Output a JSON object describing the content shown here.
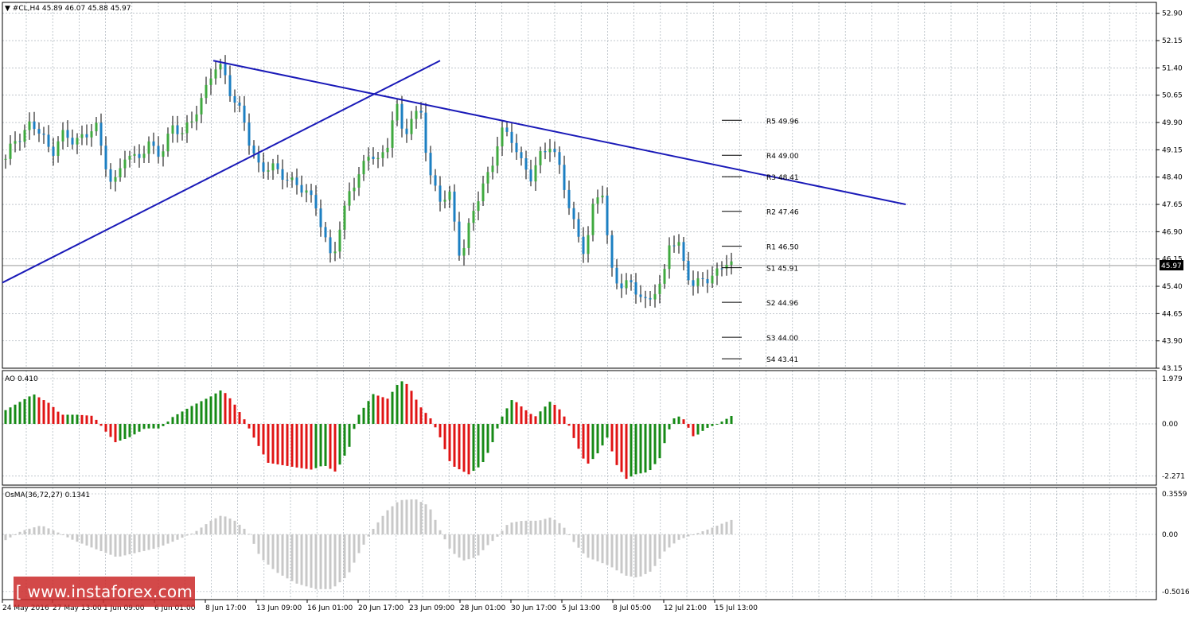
{
  "panels": {
    "main_label": "▼ #CL,H4  45.89 46.07 45.88 45.97",
    "ao_label": "AO 0.410",
    "osma_label": "OsMA(36,72,27) 0.1341",
    "current_price": "45.97"
  },
  "watermark": "[ www.instaforex.com ]",
  "colors": {
    "up_candle": "#3fa93f",
    "down_candle": "#1c7fc2",
    "trendline": "#1a1ab8",
    "ao_up": "#168a16",
    "ao_down": "#e01414",
    "osma": "#c8c8c8",
    "grid": "#9aa4ad"
  },
  "chart_data": [
    {
      "type": "candlestick",
      "symbol": "#CL,H4",
      "y_ticks": [
        "52.90",
        "52.15",
        "51.40",
        "50.65",
        "49.90",
        "49.15",
        "48.40",
        "47.65",
        "46.90",
        "46.15",
        "45.40",
        "44.65",
        "43.90",
        "43.15"
      ],
      "ylim": [
        43.15,
        53.2
      ],
      "x_ticks": [
        "24 May 2016",
        "27 May 13:00",
        "1 Jun 09:00",
        "6 Jun 01:00",
        "8 Jun 17:00",
        "13 Jun 09:00",
        "16 Jun 01:00",
        "20 Jun 17:00",
        "23 Jun 09:00",
        "28 Jun 01:00",
        "30 Jun 17:00",
        "5 Jul 13:00",
        "8 Jul 05:00",
        "12 Jul 21:00",
        "15 Jul 13:00"
      ],
      "close_path": [
        [
          0,
          48.9
        ],
        [
          10,
          49.4
        ],
        [
          20,
          49.5
        ],
        [
          32,
          49.9
        ],
        [
          45,
          49.6
        ],
        [
          58,
          49.0
        ],
        [
          70,
          49.6
        ],
        [
          85,
          49.4
        ],
        [
          100,
          49.5
        ],
        [
          113,
          49.9
        ],
        [
          122,
          49.0
        ],
        [
          135,
          48.1
        ],
        [
          150,
          49.0
        ],
        [
          165,
          48.9
        ],
        [
          180,
          49.3
        ],
        [
          195,
          49.0
        ],
        [
          210,
          49.8
        ],
        [
          222,
          49.6
        ],
        [
          235,
          50.0
        ],
        [
          248,
          50.6
        ],
        [
          258,
          51.2
        ],
        [
          266,
          51.5
        ],
        [
          274,
          51.3
        ],
        [
          284,
          50.6
        ],
        [
          298,
          50.1
        ],
        [
          308,
          49.2
        ],
        [
          320,
          48.6
        ],
        [
          335,
          48.7
        ],
        [
          350,
          48.4
        ],
        [
          365,
          48.2
        ],
        [
          378,
          48.0
        ],
        [
          390,
          47.6
        ],
        [
          400,
          46.8
        ],
        [
          410,
          46.1
        ],
        [
          420,
          47.0
        ],
        [
          432,
          48.0
        ],
        [
          445,
          48.5
        ],
        [
          458,
          49.1
        ],
        [
          470,
          48.8
        ],
        [
          480,
          49.3
        ],
        [
          490,
          50.5
        ],
        [
          500,
          49.5
        ],
        [
          510,
          50.0
        ],
        [
          522,
          50.2
        ],
        [
          532,
          48.5
        ],
        [
          545,
          47.8
        ],
        [
          558,
          47.9
        ],
        [
          572,
          46.1
        ],
        [
          585,
          47.3
        ],
        [
          598,
          48.1
        ],
        [
          610,
          48.6
        ],
        [
          622,
          49.7
        ],
        [
          635,
          49.5
        ],
        [
          648,
          48.8
        ],
        [
          660,
          48.4
        ],
        [
          672,
          49.0
        ],
        [
          685,
          49.3
        ],
        [
          697,
          48.6
        ],
        [
          708,
          47.6
        ],
        [
          717,
          46.9
        ],
        [
          728,
          46.3
        ],
        [
          740,
          47.8
        ],
        [
          750,
          48.0
        ],
        [
          760,
          45.9
        ],
        [
          772,
          45.4
        ],
        [
          785,
          45.5
        ],
        [
          795,
          45.2
        ],
        [
          806,
          44.9
        ],
        [
          816,
          45.3
        ],
        [
          826,
          45.5
        ],
        [
          834,
          46.6
        ],
        [
          845,
          46.6
        ],
        [
          855,
          45.8
        ],
        [
          865,
          45.4
        ],
        [
          875,
          45.6
        ],
        [
          885,
          45.6
        ],
        [
          895,
          45.8
        ],
        [
          905,
          46.1
        ],
        [
          914,
          45.97
        ]
      ],
      "support_resistance": [
        {
          "label": "R5 49.96",
          "value": 49.96
        },
        {
          "label": "R4 49.00",
          "value": 49.0
        },
        {
          "label": "R3 48.41",
          "value": 48.41
        },
        {
          "label": "R2 47.46",
          "value": 47.46
        },
        {
          "label": "R1 46.50",
          "value": 46.5
        },
        {
          "label": "S1 45.91",
          "value": 45.91
        },
        {
          "label": "S2 44.96",
          "value": 44.96
        },
        {
          "label": "S3 44.00",
          "value": 44.0
        },
        {
          "label": "S4 43.41",
          "value": 43.41
        }
      ],
      "trendlines": [
        {
          "name": "rising",
          "from": [
            0,
            45.5
          ],
          "to": [
            550,
            51.6
          ]
        },
        {
          "name": "falling",
          "from": [
            265,
            51.6
          ],
          "to": [
            1135,
            47.65
          ]
        }
      ],
      "current_value": 45.97
    },
    {
      "type": "histogram",
      "name": "AO",
      "value": 0.41,
      "y_ticks": [
        "1.979",
        "0.00",
        "-2.271"
      ],
      "ylim": [
        -2.271,
        1.979
      ],
      "bar_path": [
        [
          0,
          0.6
        ],
        [
          35,
          1.3
        ],
        [
          55,
          0.9
        ],
        [
          70,
          0.4
        ],
        [
          90,
          0.4
        ],
        [
          110,
          0.35
        ],
        [
          125,
          -0.3
        ],
        [
          138,
          -0.8
        ],
        [
          155,
          -0.6
        ],
        [
          175,
          -0.2
        ],
        [
          195,
          -0.2
        ],
        [
          210,
          0.3
        ],
        [
          235,
          0.8
        ],
        [
          258,
          1.2
        ],
        [
          272,
          1.5
        ],
        [
          285,
          1.0
        ],
        [
          300,
          0.2
        ],
        [
          312,
          -0.6
        ],
        [
          330,
          -1.7
        ],
        [
          365,
          -1.9
        ],
        [
          385,
          -2.0
        ],
        [
          400,
          -1.8
        ],
        [
          415,
          -2.1
        ],
        [
          432,
          -1.0
        ],
        [
          442,
          0.3
        ],
        [
          462,
          1.3
        ],
        [
          480,
          1.1
        ],
        [
          496,
          1.9
        ],
        [
          506,
          1.7
        ],
        [
          520,
          0.8
        ],
        [
          535,
          0.2
        ],
        [
          545,
          -0.5
        ],
        [
          560,
          -1.8
        ],
        [
          582,
          -2.2
        ],
        [
          598,
          -1.8
        ],
        [
          610,
          -1.0
        ],
        [
          622,
          0.2
        ],
        [
          637,
          1.1
        ],
        [
          650,
          0.7
        ],
        [
          665,
          0.3
        ],
        [
          685,
          1.0
        ],
        [
          697,
          0.6
        ],
        [
          706,
          0.1
        ],
        [
          716,
          -0.8
        ],
        [
          730,
          -1.8
        ],
        [
          742,
          -1.4
        ],
        [
          756,
          -0.6
        ],
        [
          768,
          -1.8
        ],
        [
          780,
          -2.4
        ],
        [
          792,
          -2.2
        ],
        [
          808,
          -2.1
        ],
        [
          822,
          -1.5
        ],
        [
          832,
          -0.4
        ],
        [
          842,
          0.4
        ],
        [
          852,
          0.2
        ],
        [
          865,
          -0.6
        ],
        [
          880,
          -0.2
        ],
        [
          895,
          0.0
        ],
        [
          905,
          0.2
        ],
        [
          915,
          0.41
        ]
      ]
    },
    {
      "type": "histogram",
      "name": "OsMA(36,72,27)",
      "value": 0.1341,
      "y_ticks": [
        "0.3559",
        "0.00",
        "-0.5016"
      ],
      "ylim": [
        -0.5016,
        0.3559
      ],
      "bar_path": [
        [
          0,
          -0.05
        ],
        [
          20,
          0.03
        ],
        [
          45,
          0.08
        ],
        [
          65,
          0.02
        ],
        [
          85,
          -0.05
        ],
        [
          110,
          -0.12
        ],
        [
          140,
          -0.2
        ],
        [
          165,
          -0.16
        ],
        [
          190,
          -0.12
        ],
        [
          215,
          -0.05
        ],
        [
          238,
          0.02
        ],
        [
          258,
          0.12
        ],
        [
          272,
          0.17
        ],
        [
          288,
          0.12
        ],
        [
          305,
          0.02
        ],
        [
          320,
          -0.2
        ],
        [
          340,
          -0.33
        ],
        [
          365,
          -0.43
        ],
        [
          390,
          -0.48
        ],
        [
          410,
          -0.48
        ],
        [
          430,
          -0.36
        ],
        [
          445,
          -0.15
        ],
        [
          460,
          0.03
        ],
        [
          478,
          0.2
        ],
        [
          495,
          0.3
        ],
        [
          515,
          0.31
        ],
        [
          532,
          0.25
        ],
        [
          545,
          0.05
        ],
        [
          560,
          -0.15
        ],
        [
          575,
          -0.23
        ],
        [
          592,
          -0.2
        ],
        [
          605,
          -0.1
        ],
        [
          618,
          -0.02
        ],
        [
          632,
          0.1
        ],
        [
          650,
          0.12
        ],
        [
          670,
          0.12
        ],
        [
          685,
          0.15
        ],
        [
          700,
          0.08
        ],
        [
          712,
          -0.05
        ],
        [
          730,
          -0.2
        ],
        [
          742,
          -0.23
        ],
        [
          760,
          -0.28
        ],
        [
          778,
          -0.36
        ],
        [
          795,
          -0.38
        ],
        [
          812,
          -0.32
        ],
        [
          828,
          -0.15
        ],
        [
          845,
          -0.05
        ],
        [
          865,
          0.0
        ],
        [
          885,
          0.05
        ],
        [
          902,
          0.1
        ],
        [
          915,
          0.1341
        ]
      ]
    }
  ]
}
